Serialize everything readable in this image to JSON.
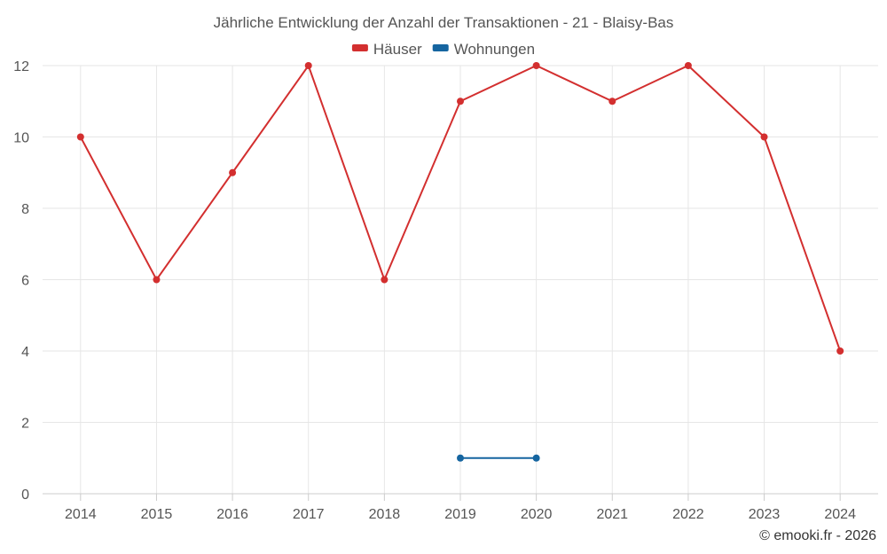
{
  "chart_data": {
    "type": "line",
    "title": "Jährliche Entwicklung der Anzahl der Transaktionen - 21 - Blaisy-Bas",
    "categories": [
      "2014",
      "2015",
      "2016",
      "2017",
      "2018",
      "2019",
      "2020",
      "2021",
      "2022",
      "2023",
      "2024"
    ],
    "series": [
      {
        "name": "Häuser",
        "color": "#d32f2f",
        "values": [
          10,
          6,
          9,
          12,
          6,
          11,
          12,
          11,
          12,
          10,
          4
        ]
      },
      {
        "name": "Wohnungen",
        "color": "#1565a0",
        "values": [
          null,
          null,
          null,
          null,
          null,
          1,
          1,
          null,
          null,
          null,
          null
        ]
      }
    ],
    "ylim": [
      0,
      12
    ],
    "yticks": [
      0,
      2,
      4,
      6,
      8,
      10,
      12
    ],
    "grid": true,
    "legend_position": "top-center"
  },
  "credit": "© emooki.fr - 2026"
}
